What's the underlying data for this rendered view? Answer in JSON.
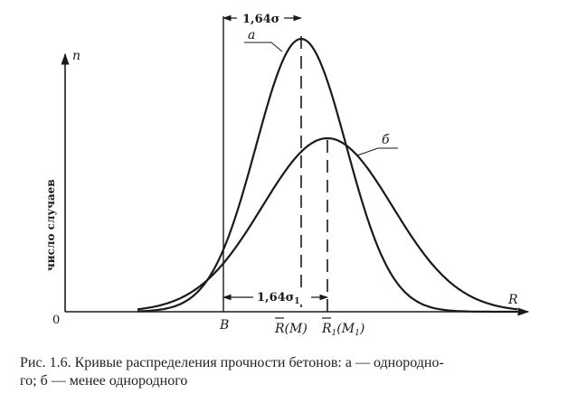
{
  "axes": {
    "y_label": "n",
    "x_label": "R",
    "origin_label": "0",
    "y_axis_title": "число случаев"
  },
  "curves": [
    {
      "id": "a",
      "label": "а"
    },
    {
      "id": "b",
      "label": "б"
    }
  ],
  "markers": {
    "B": "B",
    "RM_bar": "R",
    "RM_rest": "(M)",
    "R1M1_bar": "R",
    "R1M1_sub": "1",
    "R1M1_rest": "(M",
    "R1M1_sub2": "1",
    "R1M1_close": ")"
  },
  "dimensions": {
    "top_text": "1,64σ",
    "bottom_text": "1,64σ",
    "bottom_sub": "1"
  },
  "caption": {
    "line1": "Рис. 1.6. Кривые распределения прочности бетонов: а — однородно-",
    "line2": "го; б — менее однородного"
  }
}
